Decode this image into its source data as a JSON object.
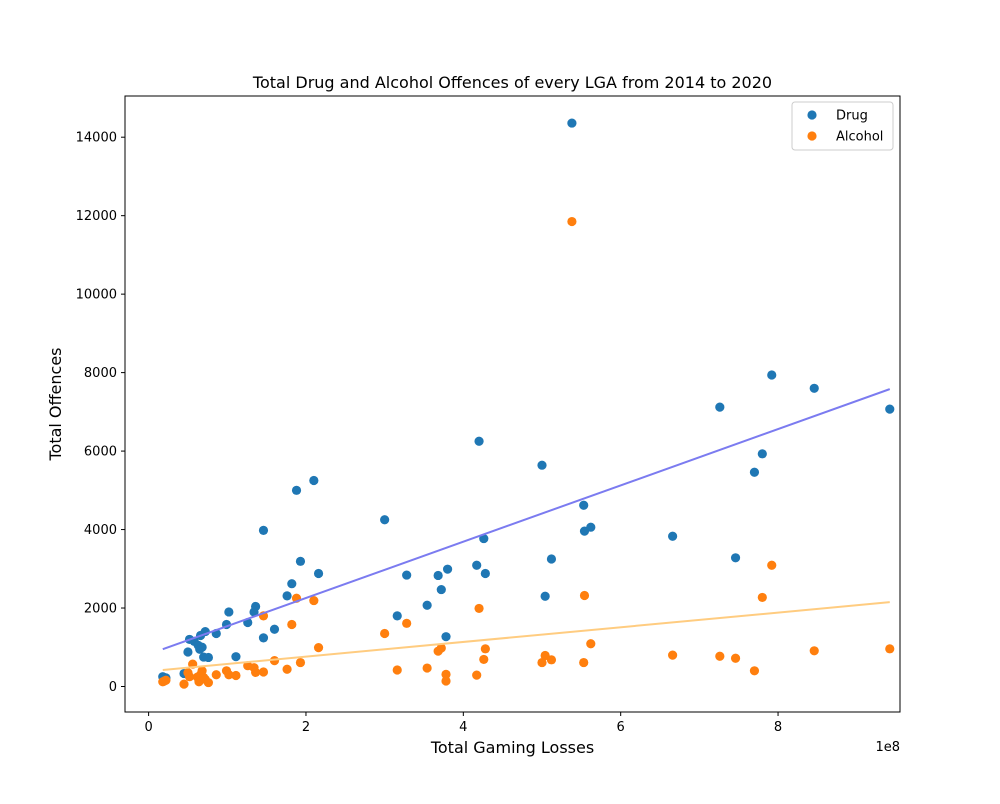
{
  "chart_data": {
    "type": "scatter",
    "title": "Total Drug and Alcohol Offences of every LGA from 2014 to 2020",
    "xlabel": "Total Gaming Losses",
    "ylabel": "Total Offences",
    "x_offset_text": "1e8",
    "xlim": [
      -30000000.0,
      955000000.0
    ],
    "ylim": [
      -650,
      15050
    ],
    "xticks": [
      0,
      200000000.0,
      400000000.0,
      600000000.0,
      800000000.0
    ],
    "xtick_labels": [
      "0",
      "2",
      "4",
      "6",
      "8"
    ],
    "yticks": [
      0,
      2000,
      4000,
      6000,
      8000,
      10000,
      12000,
      14000
    ],
    "ytick_labels": [
      "0",
      "2000",
      "4000",
      "6000",
      "8000",
      "10000",
      "12000",
      "14000"
    ],
    "grid": false,
    "legend_position": "top-right",
    "series": [
      {
        "name": "Drug",
        "color": "#1f77b4",
        "points": [
          [
            18000000.0,
            250
          ],
          [
            22000000.0,
            220
          ],
          [
            45000000.0,
            330
          ],
          [
            50000000.0,
            880
          ],
          [
            52000000.0,
            1200
          ],
          [
            58000000.0,
            1150
          ],
          [
            63000000.0,
            1050
          ],
          [
            65000000.0,
            950
          ],
          [
            66000000.0,
            1300
          ],
          [
            68000000.0,
            1000
          ],
          [
            70000000.0,
            750
          ],
          [
            72000000.0,
            1400
          ],
          [
            76000000.0,
            740
          ],
          [
            86000000.0,
            1350
          ],
          [
            99000000.0,
            1580
          ],
          [
            102000000.0,
            1900
          ],
          [
            111000000.0,
            760
          ],
          [
            126000000.0,
            1630
          ],
          [
            134000000.0,
            1900
          ],
          [
            136000000.0,
            2040
          ],
          [
            146000000.0,
            1240
          ],
          [
            146000000.0,
            3980
          ],
          [
            160000000.0,
            1460
          ],
          [
            176000000.0,
            2310
          ],
          [
            182000000.0,
            2620
          ],
          [
            188000000.0,
            5000
          ],
          [
            193000000.0,
            3190
          ],
          [
            210000000.0,
            5250
          ],
          [
            216000000.0,
            2880
          ],
          [
            300000000.0,
            4250
          ],
          [
            316000000.0,
            1800
          ],
          [
            328000000.0,
            2840
          ],
          [
            354000000.0,
            2070
          ],
          [
            368000000.0,
            2830
          ],
          [
            372000000.0,
            2470
          ],
          [
            378000000.0,
            1270
          ],
          [
            380000000.0,
            2990
          ],
          [
            417000000.0,
            3090
          ],
          [
            420000000.0,
            6250
          ],
          [
            426000000.0,
            3770
          ],
          [
            428000000.0,
            2880
          ],
          [
            500000000.0,
            5640
          ],
          [
            504000000.0,
            2300
          ],
          [
            512000000.0,
            3250
          ],
          [
            538000000.0,
            14360
          ],
          [
            553000000.0,
            4620
          ],
          [
            554000000.0,
            3960
          ],
          [
            562000000.0,
            4060
          ],
          [
            666000000.0,
            3830
          ],
          [
            726000000.0,
            7120
          ],
          [
            746000000.0,
            3280
          ],
          [
            770000000.0,
            5460
          ],
          [
            780000000.0,
            5930
          ],
          [
            792000000.0,
            7940
          ],
          [
            846000000.0,
            7600
          ],
          [
            942000000.0,
            7070
          ]
        ]
      },
      {
        "name": "Alcohol",
        "color": "#ff7f0e",
        "points": [
          [
            18000000.0,
            120
          ],
          [
            20000000.0,
            140
          ],
          [
            22000000.0,
            160
          ],
          [
            45000000.0,
            60
          ],
          [
            50000000.0,
            350
          ],
          [
            52000000.0,
            250
          ],
          [
            56000000.0,
            570
          ],
          [
            62000000.0,
            240
          ],
          [
            64000000.0,
            120
          ],
          [
            66000000.0,
            300
          ],
          [
            68000000.0,
            400
          ],
          [
            70000000.0,
            230
          ],
          [
            72000000.0,
            180
          ],
          [
            76000000.0,
            100
          ],
          [
            86000000.0,
            300
          ],
          [
            99000000.0,
            400
          ],
          [
            102000000.0,
            300
          ],
          [
            111000000.0,
            280
          ],
          [
            126000000.0,
            530
          ],
          [
            134000000.0,
            480
          ],
          [
            136000000.0,
            360
          ],
          [
            146000000.0,
            370
          ],
          [
            146000000.0,
            1800
          ],
          [
            160000000.0,
            660
          ],
          [
            176000000.0,
            440
          ],
          [
            182000000.0,
            1580
          ],
          [
            188000000.0,
            2250
          ],
          [
            193000000.0,
            610
          ],
          [
            210000000.0,
            2190
          ],
          [
            216000000.0,
            990
          ],
          [
            300000000.0,
            1350
          ],
          [
            316000000.0,
            420
          ],
          [
            328000000.0,
            1610
          ],
          [
            354000000.0,
            470
          ],
          [
            368000000.0,
            900
          ],
          [
            372000000.0,
            980
          ],
          [
            378000000.0,
            310
          ],
          [
            378000000.0,
            140
          ],
          [
            417000000.0,
            290
          ],
          [
            420000000.0,
            1990
          ],
          [
            426000000.0,
            690
          ],
          [
            428000000.0,
            960
          ],
          [
            500000000.0,
            610
          ],
          [
            504000000.0,
            790
          ],
          [
            512000000.0,
            680
          ],
          [
            538000000.0,
            11850
          ],
          [
            553000000.0,
            610
          ],
          [
            554000000.0,
            2320
          ],
          [
            562000000.0,
            1090
          ],
          [
            666000000.0,
            800
          ],
          [
            726000000.0,
            770
          ],
          [
            746000000.0,
            720
          ],
          [
            770000000.0,
            400
          ],
          [
            780000000.0,
            2270
          ],
          [
            792000000.0,
            3090
          ],
          [
            846000000.0,
            910
          ],
          [
            942000000.0,
            960
          ]
        ]
      }
    ],
    "trend_lines": [
      {
        "color": "#7b7bf0",
        "x": [
          18000000.0,
          942000000.0
        ],
        "y": [
          950,
          7580
        ]
      },
      {
        "color": "#ffcc80",
        "x": [
          18000000.0,
          942000000.0
        ],
        "y": [
          420,
          2150
        ]
      }
    ]
  }
}
